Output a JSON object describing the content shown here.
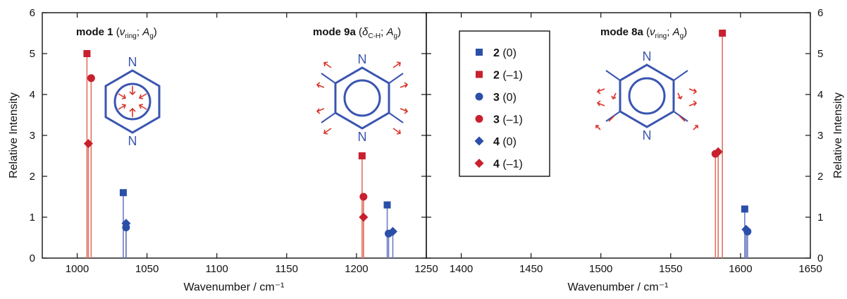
{
  "figure": {
    "left_title": "Wavenumber / cm⁻¹",
    "right_title": "Wavenumber / cm⁻¹",
    "ylabel_left": "Relative Intensity",
    "ylabel_right": "Relative Intensity",
    "mode1": {
      "bold": "mode 1",
      "sym": "ν",
      "sub": "ring",
      "sep": "; ",
      "irrep": "A",
      "irrep_sub": "g"
    },
    "mode9a": {
      "bold": "mode 9a",
      "sym": "δ",
      "sub": "C-H",
      "sep": "; ",
      "irrep": "A",
      "irrep_sub": "g"
    },
    "mode8a": {
      "bold": "mode 8a",
      "sym": "ν",
      "sub": "ring",
      "sep": "; ",
      "irrep": "A",
      "irrep_sub": "g"
    },
    "legend": [
      {
        "num": "2",
        "state": "(0)",
        "marker": "square",
        "color": "#2b4fa8"
      },
      {
        "num": "2",
        "state": "(–1)",
        "marker": "square",
        "color": "#c8202f"
      },
      {
        "num": "3",
        "state": "(0)",
        "marker": "circle",
        "color": "#2b4fa8"
      },
      {
        "num": "3",
        "state": "(–1)",
        "marker": "circle",
        "color": "#c8202f"
      },
      {
        "num": "4",
        "state": "(0)",
        "marker": "diamond",
        "color": "#2b4fa8"
      },
      {
        "num": "4",
        "state": "(–1)",
        "marker": "diamond",
        "color": "#c8202f"
      }
    ],
    "molecule_atom": "N",
    "colors": {
      "blue": "#2b4fa8",
      "red": "#c8202f",
      "blue_line": "#6d7cc4",
      "red_line": "#e0725f",
      "molecule": "#3a55b0",
      "arrow": "#d9342b"
    }
  },
  "chart_data": [
    {
      "type": "stem",
      "xlabel": "Wavenumber / cm⁻¹",
      "ylabel": "Relative Intensity",
      "xlim": [
        975,
        1250
      ],
      "ylim": [
        0,
        6
      ],
      "xticks": [
        1000,
        1050,
        1100,
        1150,
        1200,
        1250
      ],
      "yticks": [
        0,
        1,
        2,
        3,
        4,
        5,
        6
      ],
      "series": [
        {
          "name": "2 (0)",
          "color": "blue",
          "marker": "square",
          "points": [
            [
              1033,
              1.6
            ],
            [
              1222,
              1.3
            ]
          ]
        },
        {
          "name": "2 (–1)",
          "color": "red",
          "marker": "square",
          "points": [
            [
              1007,
              5.0
            ],
            [
              1204,
              2.5
            ]
          ]
        },
        {
          "name": "3 (0)",
          "color": "blue",
          "marker": "circle",
          "points": [
            [
              1035,
              0.75
            ],
            [
              1223,
              0.6
            ]
          ]
        },
        {
          "name": "3 (–1)",
          "color": "red",
          "marker": "circle",
          "points": [
            [
              1010,
              4.4
            ],
            [
              1205,
              1.5
            ]
          ]
        },
        {
          "name": "4 (0)",
          "color": "blue",
          "marker": "diamond",
          "points": [
            [
              1035,
              0.85
            ],
            [
              1226,
              0.65
            ]
          ]
        },
        {
          "name": "4 (–1)",
          "color": "red",
          "marker": "diamond",
          "points": [
            [
              1008,
              2.8
            ],
            [
              1205,
              1.0
            ]
          ]
        }
      ]
    },
    {
      "type": "stem",
      "xlabel": "Wavenumber / cm⁻¹",
      "ylabel": "Relative Intensity",
      "xlim": [
        1375,
        1650
      ],
      "ylim": [
        0,
        6
      ],
      "xticks": [
        1400,
        1450,
        1500,
        1550,
        1600,
        1650
      ],
      "yticks": [
        0,
        1,
        2,
        3,
        4,
        5,
        6
      ],
      "series": [
        {
          "name": "2 (0)",
          "color": "blue",
          "marker": "square",
          "points": [
            [
              1603,
              1.2
            ]
          ]
        },
        {
          "name": "2 (–1)",
          "color": "red",
          "marker": "square",
          "points": [
            [
              1587,
              5.5
            ]
          ]
        },
        {
          "name": "3 (0)",
          "color": "blue",
          "marker": "circle",
          "points": [
            [
              1605,
              0.65
            ]
          ]
        },
        {
          "name": "3 (–1)",
          "color": "red",
          "marker": "circle",
          "points": [
            [
              1582,
              2.55
            ]
          ]
        },
        {
          "name": "4 (0)",
          "color": "blue",
          "marker": "diamond",
          "points": [
            [
              1604,
              0.7
            ]
          ]
        },
        {
          "name": "4 (–1)",
          "color": "red",
          "marker": "diamond",
          "points": [
            [
              1584,
              2.6
            ]
          ]
        }
      ]
    }
  ]
}
